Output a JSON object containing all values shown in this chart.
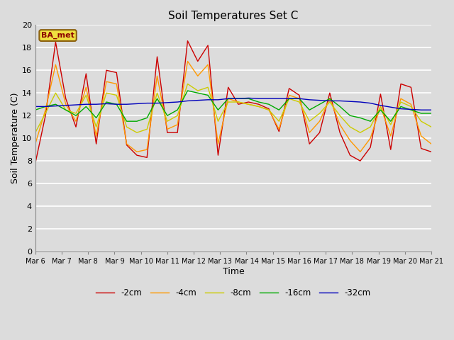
{
  "title": "Soil Temperatures Set C",
  "xlabel": "Time",
  "ylabel": "Soil Temperature (C)",
  "ylim": [
    0,
    20
  ],
  "yticks": [
    0,
    2,
    4,
    6,
    8,
    10,
    12,
    14,
    16,
    18,
    20
  ],
  "label_annotation": "BA_met",
  "plot_bg_color": "#dcdcdc",
  "fig_bg_color": "#dcdcdc",
  "line_colors": {
    "-2cm": "#cc0000",
    "-4cm": "#ff9900",
    "-8cm": "#cccc00",
    "-16cm": "#00aa00",
    "-32cm": "#0000bb"
  },
  "legend_order": [
    "-2cm",
    "-4cm",
    "-8cm",
    "-16cm",
    "-32cm"
  ],
  "x_labels": [
    "Mar 6",
    "Mar 7",
    "Mar 8",
    "Mar 9",
    "Mar 10",
    "Mar 11",
    "Mar 12",
    "Mar 13",
    "Mar 14",
    "Mar 15",
    "Mar 16",
    "Mar 17",
    "Mar 18",
    "Mar 19",
    "Mar 20",
    "Mar 21"
  ],
  "depths": {
    "-2cm": [
      7.8,
      12.0,
      18.5,
      13.5,
      11.0,
      15.7,
      9.5,
      16.0,
      15.8,
      9.4,
      8.5,
      8.3,
      17.2,
      10.5,
      10.5,
      18.6,
      16.8,
      18.2,
      8.5,
      14.5,
      13.0,
      13.2,
      13.0,
      12.6,
      10.6,
      14.4,
      13.8,
      9.5,
      10.5,
      14.0,
      10.5,
      8.5,
      8.0,
      9.2,
      13.9,
      9.0,
      14.8,
      14.5,
      9.1,
      8.8
    ],
    "-4cm": [
      9.5,
      12.5,
      16.5,
      13.0,
      11.5,
      14.5,
      10.2,
      15.0,
      14.8,
      9.5,
      8.8,
      9.0,
      15.5,
      10.8,
      11.2,
      16.8,
      15.5,
      16.5,
      9.5,
      13.5,
      13.2,
      13.0,
      12.8,
      12.5,
      10.8,
      13.8,
      13.5,
      10.5,
      11.5,
      13.5,
      11.2,
      9.8,
      8.8,
      10.0,
      12.8,
      10.2,
      13.5,
      13.0,
      10.2,
      9.5
    ],
    "-8cm": [
      10.5,
      12.2,
      14.0,
      12.5,
      12.2,
      13.8,
      11.0,
      14.0,
      13.8,
      11.0,
      10.5,
      10.8,
      14.0,
      11.5,
      12.0,
      14.8,
      14.2,
      14.5,
      11.5,
      13.2,
      13.2,
      13.0,
      12.8,
      12.5,
      11.5,
      13.5,
      13.2,
      11.5,
      12.2,
      13.2,
      12.0,
      11.0,
      10.5,
      11.0,
      12.8,
      11.2,
      13.2,
      12.8,
      11.5,
      11.0
    ],
    "-16cm": [
      12.5,
      12.8,
      13.0,
      12.5,
      12.0,
      12.8,
      11.8,
      13.2,
      13.0,
      11.5,
      11.5,
      11.8,
      13.5,
      12.0,
      12.5,
      14.2,
      14.0,
      13.8,
      12.5,
      13.5,
      13.5,
      13.5,
      13.2,
      13.0,
      12.5,
      13.5,
      13.5,
      12.5,
      13.0,
      13.5,
      12.8,
      12.0,
      11.8,
      11.5,
      12.5,
      11.5,
      12.8,
      12.5,
      12.2,
      12.2
    ],
    "-32cm": [
      12.8,
      12.8,
      12.85,
      12.9,
      12.95,
      13.0,
      13.0,
      13.05,
      13.0,
      13.0,
      13.05,
      13.1,
      13.1,
      13.15,
      13.2,
      13.3,
      13.35,
      13.4,
      13.4,
      13.5,
      13.5,
      13.55,
      13.5,
      13.5,
      13.5,
      13.5,
      13.5,
      13.4,
      13.35,
      13.3,
      13.3,
      13.25,
      13.2,
      13.1,
      12.9,
      12.75,
      12.6,
      12.55,
      12.5,
      12.5
    ]
  }
}
